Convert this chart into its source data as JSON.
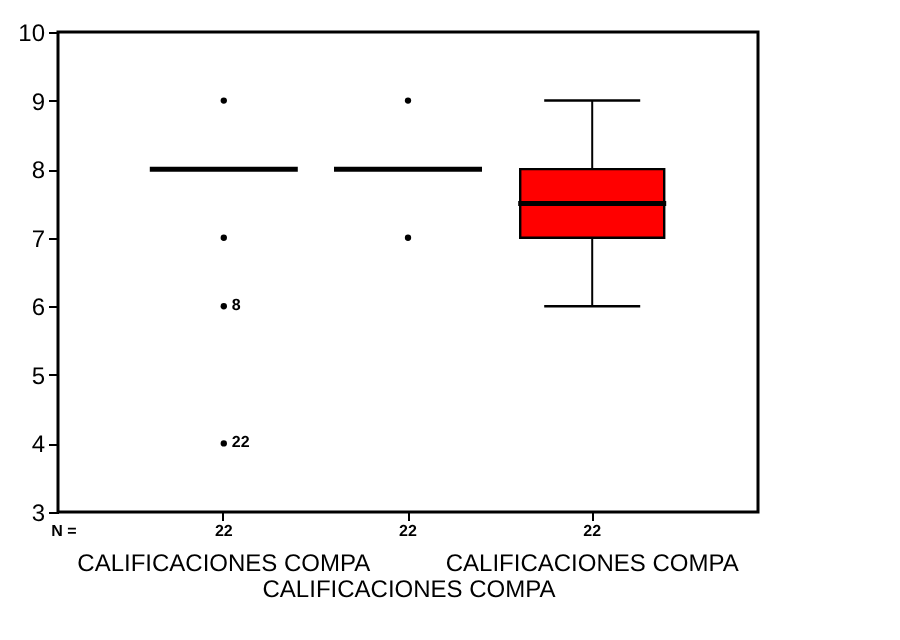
{
  "chart_data": {
    "type": "box",
    "xlabel": "CALIFICACIONES COMPA",
    "categories": [
      "CALIFICACIONES COMPA",
      null,
      "CALIFICACIONES COMPA"
    ],
    "boxes": [
      {
        "low": 8,
        "q1": 8,
        "median": 8,
        "q3": 8,
        "high": 8,
        "outliers": [
          9,
          7,
          6,
          4
        ]
      },
      {
        "low": 8,
        "q1": 8,
        "median": 8,
        "q3": 8,
        "high": 8,
        "outliers": [
          9,
          7
        ]
      },
      {
        "low": 6,
        "q1": 7,
        "median": 7.5,
        "q3": 8,
        "high": 9
      }
    ],
    "colors": [
      null,
      null,
      "#ff0000"
    ],
    "ylim": [
      3,
      10
    ],
    "yticks": [
      3,
      4,
      5,
      6,
      7,
      8,
      9,
      10
    ],
    "grid": false,
    "annotations": [
      "N =",
      "22",
      "22",
      "22",
      "8",
      "22"
    ]
  }
}
